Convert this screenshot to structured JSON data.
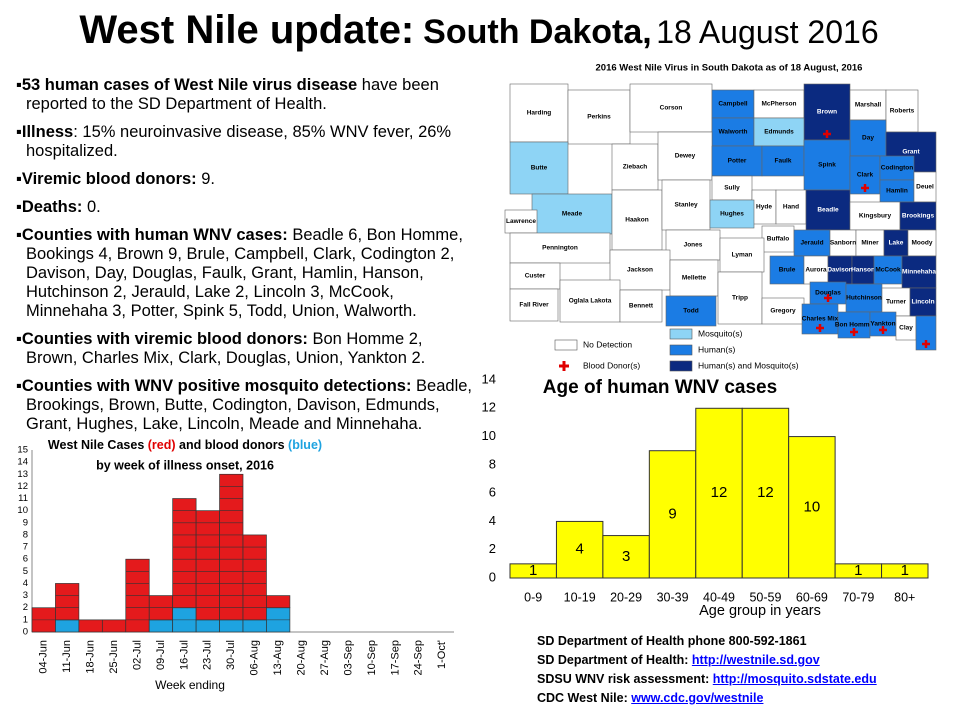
{
  "title": {
    "main": "West Nile update:",
    "region": "South Dakota,",
    "date": "18 August 2016"
  },
  "bullets": [
    {
      "lead": "53 human cases of West Nile virus disease",
      "text": " have been reported to the SD Department of Health."
    },
    {
      "lead": "Illness",
      "text": ":  15% neuroinvasive disease, 85% WNV fever, 26% hospitalized."
    },
    {
      "lead": "Viremic blood donors:",
      "text": "  9."
    },
    {
      "lead": "Deaths:",
      "text": "  0."
    },
    {
      "lead": "Counties with human WNV cases:",
      "text": "  Beadle 6, Bon Homme, Bookings 4, Brown 9, Brule, Campbell, Clark, Codington 2, Davison, Day, Douglas, Faulk, Grant, Hamlin, Hanson, Hutchinson 2, Jerauld, Lake 2, Lincoln 3, McCook, Minnehaha 3, Potter, Spink 5, Todd, Union, Walworth."
    },
    {
      "lead": "Counties with viremic blood donors:",
      "text": "  Bon Homme 2, Brown, Charles Mix, Clark, Douglas, Union, Yankton 2."
    },
    {
      "lead": "Counties with WNV positive mosquito detections:",
      "text": "  Beadle, Brookings, Brown, Butte, Codington, Davison, Edmunds, Grant, Hughes, Lake, Lincoln,  Meade and Minnehaha."
    }
  ],
  "map": {
    "title": "2016 West Nile Virus in South Dakota as of 18 August, 2016",
    "legend": [
      {
        "label": "No Detection",
        "color": "#ffffff"
      },
      {
        "label": "Mosquito(s)",
        "color": "#8ed4f5"
      },
      {
        "label": "Human(s)",
        "color": "#1b7ce4"
      },
      {
        "label": "Human(s) and Mosquito(s)",
        "color": "#0b2a80"
      },
      {
        "label": "Blood Donor(s)",
        "color": "#e00000"
      }
    ],
    "counties": [
      {
        "name": "Harding",
        "color": "#ffffff"
      },
      {
        "name": "Perkins",
        "color": "#ffffff"
      },
      {
        "name": "Corson",
        "color": "#ffffff"
      },
      {
        "name": "Campbell",
        "color": "#1b7ce4"
      },
      {
        "name": "McPherson",
        "color": "#ffffff"
      },
      {
        "name": "Brown",
        "color": "#0b2a80",
        "donor": true
      },
      {
        "name": "Marshall",
        "color": "#ffffff"
      },
      {
        "name": "Roberts",
        "color": "#ffffff"
      },
      {
        "name": "Walworth",
        "color": "#1b7ce4"
      },
      {
        "name": "Edmunds",
        "color": "#8ed4f5"
      },
      {
        "name": "Day",
        "color": "#1b7ce4"
      },
      {
        "name": "Grant",
        "color": "#0b2a80"
      },
      {
        "name": "Butte",
        "color": "#8ed4f5"
      },
      {
        "name": "Ziebach",
        "color": "#ffffff"
      },
      {
        "name": "Dewey",
        "color": "#ffffff"
      },
      {
        "name": "Potter",
        "color": "#1b7ce4"
      },
      {
        "name": "Faulk",
        "color": "#1b7ce4"
      },
      {
        "name": "Spink",
        "color": "#1b7ce4"
      },
      {
        "name": "Clark",
        "color": "#1b7ce4",
        "donor": true
      },
      {
        "name": "Codington",
        "color": "#1b7ce4"
      },
      {
        "name": "Hamlin",
        "color": "#1b7ce4"
      },
      {
        "name": "Deuel",
        "color": "#ffffff"
      },
      {
        "name": "Meade",
        "color": "#8ed4f5"
      },
      {
        "name": "Sully",
        "color": "#ffffff"
      },
      {
        "name": "Hyde",
        "color": "#ffffff"
      },
      {
        "name": "Hand",
        "color": "#ffffff"
      },
      {
        "name": "Beadle",
        "color": "#0b2a80"
      },
      {
        "name": "Kingsbury",
        "color": "#ffffff"
      },
      {
        "name": "Brookings",
        "color": "#0b2a80"
      },
      {
        "name": "Lawrence",
        "color": "#ffffff"
      },
      {
        "name": "Haakon",
        "color": "#ffffff"
      },
      {
        "name": "Stanley",
        "color": "#ffffff"
      },
      {
        "name": "Hughes",
        "color": "#8ed4f5"
      },
      {
        "name": "Pennington",
        "color": "#ffffff"
      },
      {
        "name": "Jones",
        "color": "#ffffff"
      },
      {
        "name": "Buffalo",
        "color": "#ffffff"
      },
      {
        "name": "Jerauld",
        "color": "#1b7ce4"
      },
      {
        "name": "Sanborn",
        "color": "#ffffff"
      },
      {
        "name": "Miner",
        "color": "#ffffff"
      },
      {
        "name": "Lake",
        "color": "#0b2a80"
      },
      {
        "name": "Moody",
        "color": "#ffffff"
      },
      {
        "name": "Lyman",
        "color": "#ffffff"
      },
      {
        "name": "Custer",
        "color": "#ffffff"
      },
      {
        "name": "Jackson",
        "color": "#ffffff"
      },
      {
        "name": "Mellette",
        "color": "#ffffff"
      },
      {
        "name": "Brule",
        "color": "#1b7ce4"
      },
      {
        "name": "Aurora",
        "color": "#ffffff"
      },
      {
        "name": "Davison",
        "color": "#0b2a80"
      },
      {
        "name": "Hanson",
        "color": "#0b2a80"
      },
      {
        "name": "McCook",
        "color": "#1b7ce4"
      },
      {
        "name": "Minnehaha",
        "color": "#0b2a80"
      },
      {
        "name": "Fall River",
        "color": "#ffffff"
      },
      {
        "name": "Oglala Lakota",
        "color": "#ffffff"
      },
      {
        "name": "Bennett",
        "color": "#ffffff"
      },
      {
        "name": "Todd",
        "color": "#1b7ce4"
      },
      {
        "name": "Tripp",
        "color": "#ffffff"
      },
      {
        "name": "Douglas",
        "color": "#1b7ce4",
        "donor": true
      },
      {
        "name": "Hutchinson",
        "color": "#1b7ce4"
      },
      {
        "name": "Turner",
        "color": "#ffffff"
      },
      {
        "name": "Gregory",
        "color": "#ffffff"
      },
      {
        "name": "Charles Mix",
        "color": "#1b7ce4",
        "donor": true
      },
      {
        "name": "Bon Homme",
        "color": "#1b7ce4",
        "donor": true
      },
      {
        "name": "Yankton",
        "color": "#1b7ce4",
        "donor": true
      },
      {
        "name": "Clay",
        "color": "#ffffff"
      },
      {
        "name": "Lincoln",
        "color": "#0b2a80"
      },
      {
        "name": null,
        "color": "#1b7ce4",
        "donor": true
      }
    ]
  },
  "chart_data": [
    {
      "type": "stacked_bar",
      "title_parts": [
        {
          "text": "West Nile Cases "
        },
        {
          "text": "(red)",
          "color": "#e00000"
        },
        {
          "text": " and blood donors "
        },
        {
          "text": "(blue)",
          "color": "#1ea3e0"
        }
      ],
      "subtitle": "by week of illness onset, 2016",
      "x_label": "Week ending",
      "categories": [
        "04-Jun",
        "11-Jun",
        "18-Jun",
        "25-Jun",
        "02-Jul",
        "09-Jul",
        "16-Jul",
        "23-Jul",
        "30-Jul",
        "06-Aug",
        "13-Aug",
        "20-Aug",
        "27-Aug",
        "03-Sep",
        "10-Sep",
        "17-Sep",
        "24-Sep",
        "1-Oct'"
      ],
      "series": [
        {
          "color": "#1ea3e0",
          "values": [
            0,
            1,
            0,
            0,
            0,
            1,
            2,
            1,
            1,
            1,
            2,
            0,
            0,
            0,
            0,
            0,
            0,
            0
          ]
        },
        {
          "color": "#e41a1c",
          "values": [
            2,
            3,
            1,
            1,
            6,
            2,
            9,
            9,
            12,
            7,
            1,
            0,
            0,
            0,
            0,
            0,
            0,
            0
          ]
        }
      ],
      "ylim": [
        0,
        15
      ],
      "yticks": [
        0,
        1,
        2,
        3,
        4,
        5,
        6,
        7,
        8,
        9,
        10,
        11,
        12,
        13,
        14,
        15
      ]
    },
    {
      "type": "bar",
      "title": "Age of human WNV cases",
      "x_label": "Age group in years",
      "categories": [
        "0-9",
        "10-19",
        "20-29",
        "30-39",
        "40-49",
        "50-59",
        "60-69",
        "70-79",
        "80+"
      ],
      "values": [
        1,
        4,
        3,
        9,
        12,
        12,
        10,
        1,
        1
      ],
      "color": "#ffff00",
      "ylim": [
        0,
        14
      ],
      "yticks": [
        0,
        2,
        4,
        6,
        8,
        10,
        12,
        14
      ]
    }
  ],
  "footer": [
    {
      "text": "SD Department of Health phone 800-592-1861"
    },
    {
      "text": "SD Department of Health: ",
      "link": "http://westnile.sd.gov"
    },
    {
      "text": "SDSU WNV risk assessment: ",
      "link": "http://mosquito.sdstate.edu"
    },
    {
      "text": "CDC West Nile: ",
      "link": "www.cdc.gov/westnile"
    }
  ]
}
